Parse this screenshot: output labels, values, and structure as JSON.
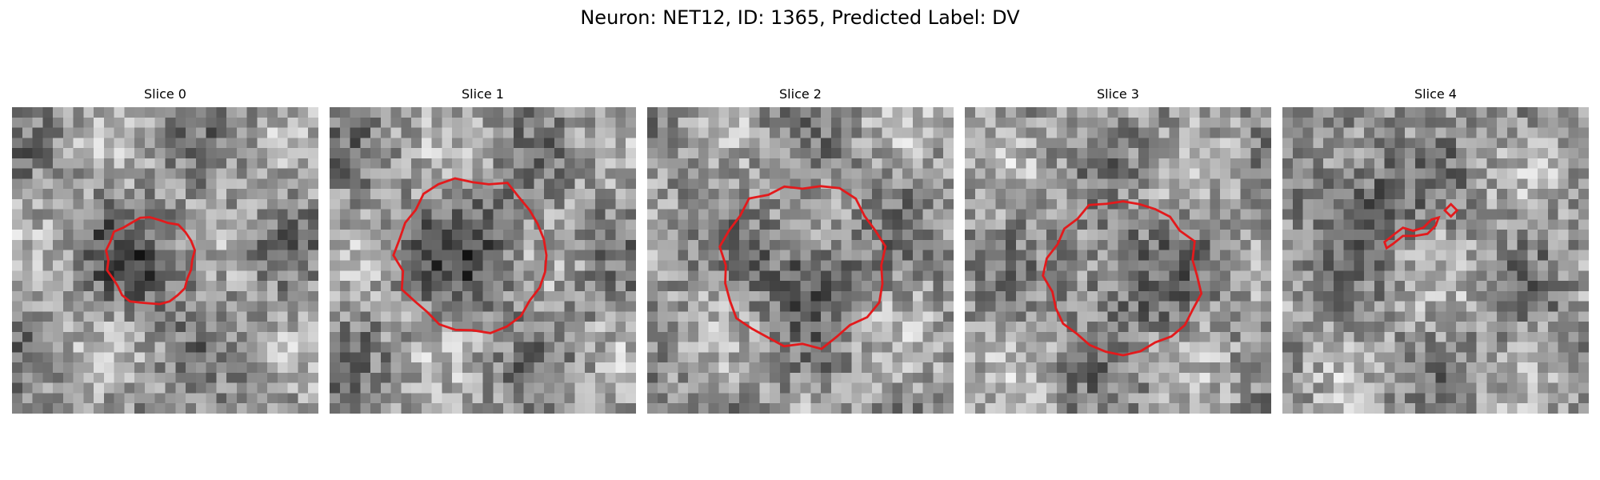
{
  "figure": {
    "title": "Neuron: NET12, ID: 1365, Predicted Label: DV",
    "outline_color": "#e31a1c",
    "colormap": "gray",
    "grid_size": 30
  },
  "slices": [
    {
      "label": "Slice 0",
      "roi": {
        "cx": 13.5,
        "cy": 15.0,
        "r": 4.3
      },
      "dark_center": [
        13,
        15
      ],
      "seed": 11
    },
    {
      "label": "Slice 1",
      "roi": {
        "cx": 14.0,
        "cy": 14.5,
        "r": 7.5
      },
      "dark_center": [
        14,
        14
      ],
      "seed": 23
    },
    {
      "label": "Slice 2",
      "roi": {
        "cx": 15.2,
        "cy": 15.5,
        "r": 8.0
      },
      "dark_center": [
        15,
        15
      ],
      "seed": 37
    },
    {
      "label": "Slice 3",
      "roi": {
        "cx": 15.5,
        "cy": 16.5,
        "r": 7.5
      },
      "dark_center": [
        15,
        16
      ],
      "seed": 41
    },
    {
      "label": "Slice 4",
      "roi": {
        "cx": 12.5,
        "cy": 11.5,
        "r": 0
      },
      "dark_center": [
        7,
        8
      ],
      "seed": 53
    }
  ]
}
